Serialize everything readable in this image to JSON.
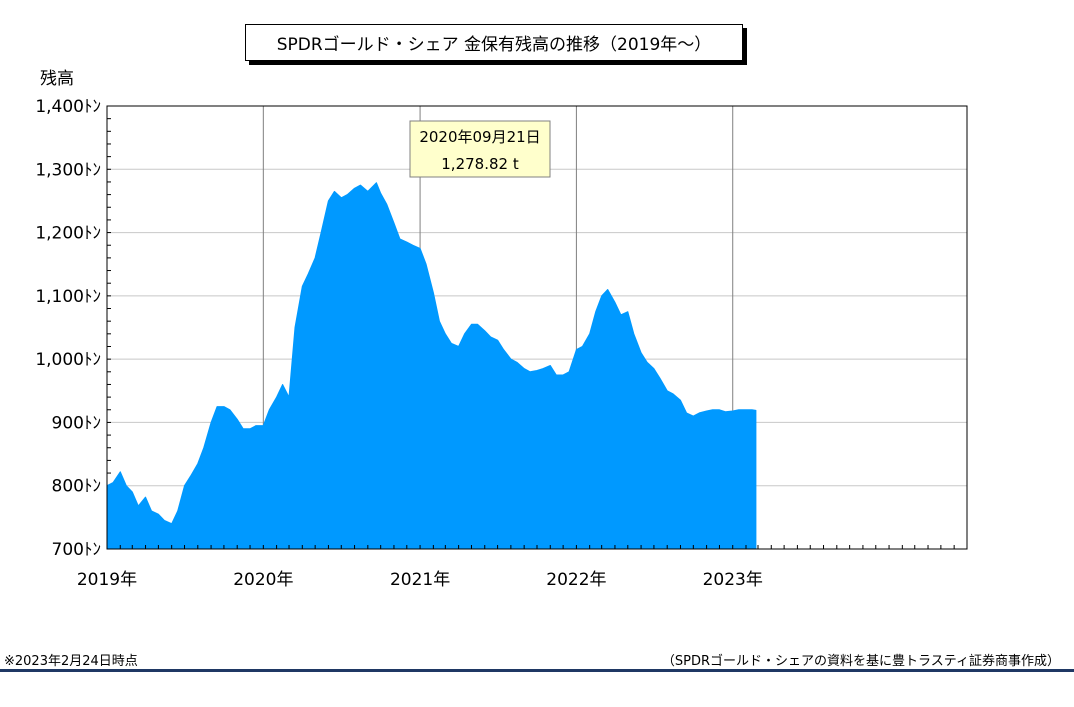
{
  "title": "SPDRゴールド・シェア 金保有残高の推移（2019年～）",
  "note": "※2023年2月24日時点",
  "source": "（SPDRゴールド・シェアの資料を基に豊トラスティ証券商事作成）",
  "chart_data": {
    "type": "area",
    "ylabel": "残高",
    "ylim": [
      700,
      1400
    ],
    "y_ticks": [
      {
        "value": 700,
        "label": "700ﾄﾝ"
      },
      {
        "value": 800,
        "label": "800ﾄﾝ"
      },
      {
        "value": 900,
        "label": "900ﾄﾝ"
      },
      {
        "value": 1000,
        "label": "1,000ﾄﾝ"
      },
      {
        "value": 1100,
        "label": "1,100ﾄﾝ"
      },
      {
        "value": 1200,
        "label": "1,200ﾄﾝ"
      },
      {
        "value": 1300,
        "label": "1,300ﾄﾝ"
      },
      {
        "value": 1400,
        "label": "1,400ﾄﾝ"
      }
    ],
    "xlim": [
      "2019-01-01",
      "2024-07-01"
    ],
    "x_ticks": [
      {
        "date": "2019-01-01",
        "label": "2019年"
      },
      {
        "date": "2020-01-01",
        "label": "2020年"
      },
      {
        "date": "2021-01-01",
        "label": "2021年"
      },
      {
        "date": "2022-01-01",
        "label": "2022年"
      },
      {
        "date": "2023-01-01",
        "label": "2023年"
      }
    ],
    "grid": true,
    "color": "#0099ff",
    "series": [
      {
        "x": [
          "2019-01-01",
          "2019-01-15",
          "2019-02-01",
          "2019-02-15",
          "2019-03-01",
          "2019-03-15",
          "2019-04-01",
          "2019-04-15",
          "2019-05-01",
          "2019-05-15",
          "2019-06-01",
          "2019-06-15",
          "2019-07-01",
          "2019-07-15",
          "2019-08-01",
          "2019-08-15",
          "2019-09-01",
          "2019-09-15",
          "2019-10-01",
          "2019-10-15",
          "2019-11-01",
          "2019-11-15",
          "2019-12-01",
          "2019-12-15",
          "2020-01-01",
          "2020-01-15",
          "2020-02-01",
          "2020-02-15",
          "2020-03-01",
          "2020-03-15",
          "2020-04-01",
          "2020-04-15",
          "2020-05-01",
          "2020-05-15",
          "2020-06-01",
          "2020-06-15",
          "2020-07-01",
          "2020-07-15",
          "2020-08-01",
          "2020-08-15",
          "2020-09-01",
          "2020-09-21",
          "2020-10-01",
          "2020-10-15",
          "2020-11-01",
          "2020-11-15",
          "2020-12-01",
          "2020-12-15",
          "2021-01-01",
          "2021-01-15",
          "2021-02-01",
          "2021-02-15",
          "2021-03-01",
          "2021-03-15",
          "2021-04-01",
          "2021-04-15",
          "2021-05-01",
          "2021-05-15",
          "2021-06-01",
          "2021-06-15",
          "2021-07-01",
          "2021-07-15",
          "2021-08-01",
          "2021-08-15",
          "2021-09-01",
          "2021-09-15",
          "2021-10-01",
          "2021-10-15",
          "2021-11-01",
          "2021-11-15",
          "2021-12-01",
          "2021-12-15",
          "2022-01-01",
          "2022-01-15",
          "2022-02-01",
          "2022-02-15",
          "2022-03-01",
          "2022-03-15",
          "2022-04-01",
          "2022-04-15",
          "2022-05-01",
          "2022-05-15",
          "2022-06-01",
          "2022-06-15",
          "2022-07-01",
          "2022-07-15",
          "2022-08-01",
          "2022-08-15",
          "2022-09-01",
          "2022-09-15",
          "2022-10-01",
          "2022-10-15",
          "2022-11-01",
          "2022-11-15",
          "2022-12-01",
          "2022-12-15",
          "2023-01-01",
          "2023-01-15",
          "2023-02-01",
          "2023-02-15",
          "2023-02-24"
        ],
        "values": [
          800,
          805,
          822,
          800,
          790,
          768,
          782,
          760,
          755,
          745,
          740,
          760,
          800,
          815,
          835,
          860,
          900,
          925,
          925,
          920,
          905,
          890,
          890,
          895,
          895,
          920,
          940,
          960,
          940,
          1050,
          1115,
          1135,
          1160,
          1200,
          1250,
          1265,
          1255,
          1260,
          1270,
          1275,
          1265,
          1278.82,
          1262,
          1245,
          1215,
          1190,
          1185,
          1180,
          1175,
          1150,
          1105,
          1060,
          1040,
          1025,
          1020,
          1040,
          1055,
          1055,
          1045,
          1035,
          1030,
          1015,
          1000,
          995,
          985,
          980,
          982,
          985,
          990,
          975,
          975,
          980,
          1015,
          1020,
          1040,
          1075,
          1100,
          1110,
          1090,
          1070,
          1075,
          1040,
          1010,
          995,
          985,
          970,
          950,
          945,
          935,
          915,
          910,
          915,
          918,
          920,
          920,
          917,
          918,
          920,
          920,
          920,
          919
        ]
      }
    ],
    "tooltip": {
      "date_label": "2020年09月21日",
      "value_label": "1,278.82 t"
    }
  }
}
